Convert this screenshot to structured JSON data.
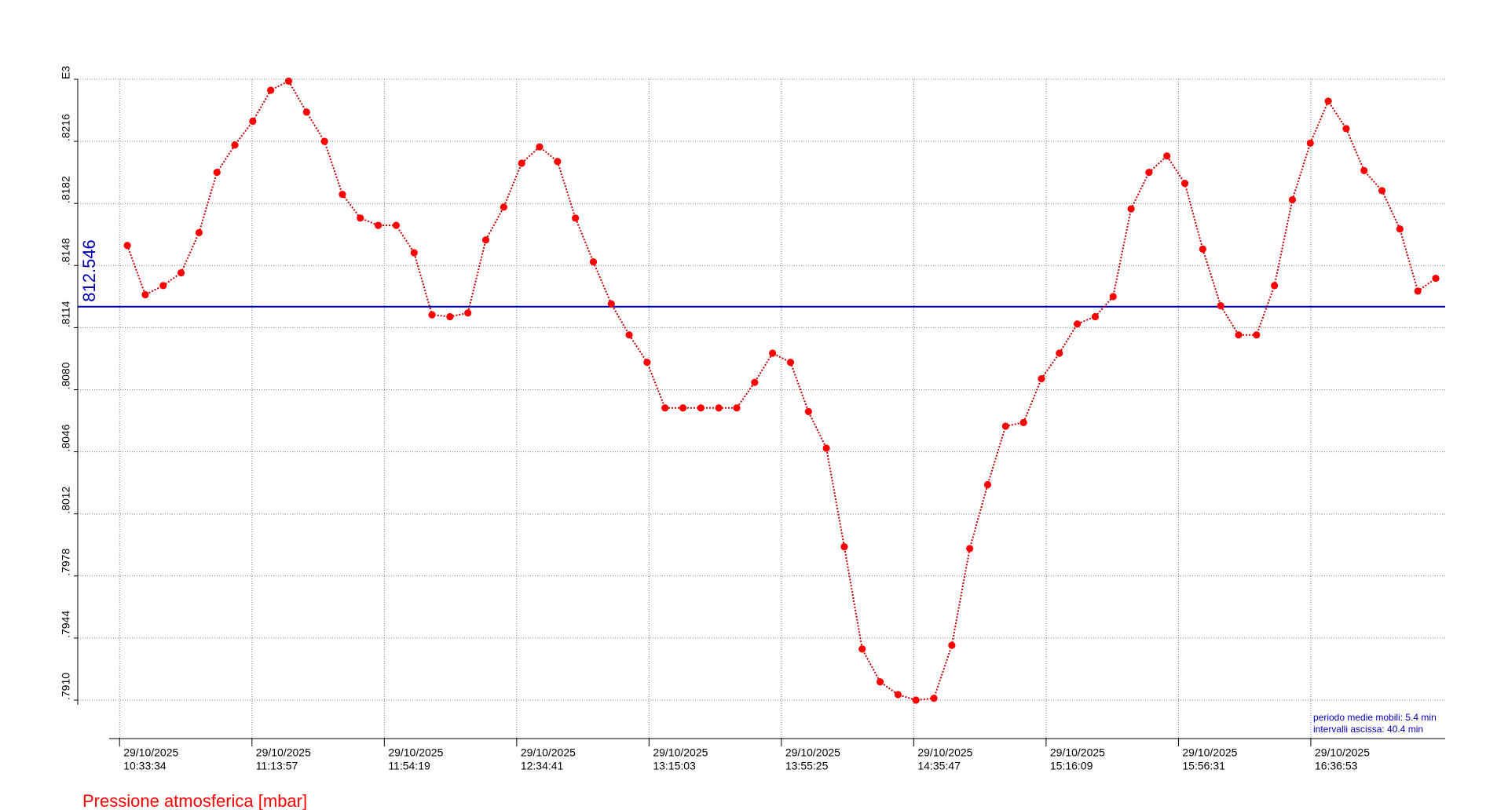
{
  "chart_data": {
    "type": "line",
    "legend": "bottom-left",
    "grid": true,
    "ylim": [
      0.791,
      0.825
    ],
    "yticks": [
      {
        "value": 0.791,
        "label": ".7910"
      },
      {
        "value": 0.7944,
        "label": ".7944"
      },
      {
        "value": 0.7978,
        "label": ".7978"
      },
      {
        "value": 0.8012,
        "label": ".8012"
      },
      {
        "value": 0.8046,
        "label": ".8046"
      },
      {
        "value": 0.808,
        "label": ".8080"
      },
      {
        "value": 0.8114,
        "label": ".8114"
      },
      {
        "value": 0.8148,
        "label": ".8148"
      },
      {
        "value": 0.8182,
        "label": ".8182"
      },
      {
        "value": 0.8216,
        "label": ".8216"
      },
      {
        "value": 0.825,
        "label": "E3"
      }
    ],
    "xlim": [
      "2025-10-29T10:20:49",
      "2025-10-29T17:17:52"
    ],
    "xticks": [
      {
        "value": "2025-10-29T10:33:34",
        "label": [
          "29/10/2025",
          "10:33:34"
        ]
      },
      {
        "value": "2025-10-29T11:13:57",
        "label": [
          "29/10/2025",
          "11:13:57"
        ]
      },
      {
        "value": "2025-10-29T11:54:19",
        "label": [
          "29/10/2025",
          "11:54:19"
        ]
      },
      {
        "value": "2025-10-29T12:34:41",
        "label": [
          "29/10/2025",
          "12:34:41"
        ]
      },
      {
        "value": "2025-10-29T13:15:03",
        "label": [
          "29/10/2025",
          "13:15:03"
        ]
      },
      {
        "value": "2025-10-29T13:55:25",
        "label": [
          "29/10/2025",
          "13:55:25"
        ]
      },
      {
        "value": "2025-10-29T14:35:47",
        "label": [
          "29/10/2025",
          "14:35:47"
        ]
      },
      {
        "value": "2025-10-29T15:16:09",
        "label": [
          "29/10/2025",
          "15:16:09"
        ]
      },
      {
        "value": "2025-10-29T15:56:31",
        "label": [
          "29/10/2025",
          "15:56:31"
        ]
      },
      {
        "value": "2025-10-29T16:36:53",
        "label": [
          "29/10/2025",
          "16:36:53"
        ]
      }
    ],
    "mean_line": {
      "value": 0.812546,
      "label": "812.546",
      "color": "#0000b0"
    },
    "annotations": [
      "periodo medie mobili: 5.4 min",
      "intervalli ascissa: 40.4 min"
    ],
    "series": [
      {
        "name": "Pressione atmosferica [mbar]",
        "color": "#ff0000",
        "x": [
          "2025-10-29T10:35:56",
          "2025-10-29T10:41:24",
          "2025-10-29T10:46:52",
          "2025-10-29T10:52:20",
          "2025-10-29T10:57:48",
          "2025-10-29T11:03:16",
          "2025-10-29T11:08:44",
          "2025-10-29T11:14:12",
          "2025-10-29T11:19:40",
          "2025-10-29T11:25:08",
          "2025-10-29T11:30:36",
          "2025-10-29T11:36:04",
          "2025-10-29T11:41:32",
          "2025-10-29T11:47:00",
          "2025-10-29T11:52:28",
          "2025-10-29T11:57:56",
          "2025-10-29T12:03:24",
          "2025-10-29T12:08:52",
          "2025-10-29T12:14:20",
          "2025-10-29T12:19:48",
          "2025-10-29T12:25:16",
          "2025-10-29T12:30:44",
          "2025-10-29T12:36:12",
          "2025-10-29T12:41:40",
          "2025-10-29T12:47:08",
          "2025-10-29T12:52:36",
          "2025-10-29T12:58:04",
          "2025-10-29T13:03:32",
          "2025-10-29T13:09:00",
          "2025-10-29T13:14:28",
          "2025-10-29T13:19:56",
          "2025-10-29T13:25:24",
          "2025-10-29T13:30:52",
          "2025-10-29T13:36:20",
          "2025-10-29T13:41:48",
          "2025-10-29T13:47:16",
          "2025-10-29T13:52:44",
          "2025-10-29T13:58:12",
          "2025-10-29T14:03:40",
          "2025-10-29T14:09:08",
          "2025-10-29T14:14:36",
          "2025-10-29T14:20:04",
          "2025-10-29T14:25:32",
          "2025-10-29T14:31:00",
          "2025-10-29T14:36:28",
          "2025-10-29T14:41:56",
          "2025-10-29T14:47:24",
          "2025-10-29T14:52:52",
          "2025-10-29T14:58:20",
          "2025-10-29T15:03:48",
          "2025-10-29T15:09:16",
          "2025-10-29T15:14:44",
          "2025-10-29T15:20:12",
          "2025-10-29T15:25:40",
          "2025-10-29T15:31:08",
          "2025-10-29T15:36:36",
          "2025-10-29T15:42:04",
          "2025-10-29T15:47:32",
          "2025-10-29T15:53:00",
          "2025-10-29T15:58:28",
          "2025-10-29T16:03:56",
          "2025-10-29T16:09:24",
          "2025-10-29T16:14:52",
          "2025-10-29T16:20:20",
          "2025-10-29T16:25:48",
          "2025-10-29T16:31:16",
          "2025-10-29T16:36:44",
          "2025-10-29T16:42:12",
          "2025-10-29T16:47:40",
          "2025-10-29T16:53:08",
          "2025-10-29T16:58:36",
          "2025-10-29T17:04:04",
          "2025-10-29T17:09:32",
          "2025-10-29T17:15:00"
        ],
        "values": [
          0.8159,
          0.8132,
          0.8137,
          0.8144,
          0.8166,
          0.8199,
          0.8214,
          0.8227,
          0.8244,
          0.8249,
          0.8232,
          0.8216,
          0.8187,
          0.8174,
          0.817,
          0.817,
          0.8155,
          0.8121,
          0.812,
          0.8122,
          0.8162,
          0.818,
          0.8204,
          0.8213,
          0.8205,
          0.8174,
          0.815,
          0.8127,
          0.811,
          0.8095,
          0.807,
          0.807,
          0.807,
          0.807,
          0.807,
          0.8084,
          0.81,
          0.8095,
          0.8068,
          0.8048,
          0.7994,
          0.7938,
          0.792,
          0.7913,
          0.791,
          0.7911,
          0.794,
          0.7993,
          0.8028,
          0.806,
          0.8062,
          0.8086,
          0.81,
          0.8116,
          0.812,
          0.8131,
          0.8179,
          0.8199,
          0.8208,
          0.8193,
          0.8157,
          0.8126,
          0.811,
          0.811,
          0.8137,
          0.8184,
          0.8215,
          0.8238,
          0.8223,
          0.82,
          0.8189,
          0.8168,
          0.8134,
          0.8141
        ]
      }
    ]
  }
}
